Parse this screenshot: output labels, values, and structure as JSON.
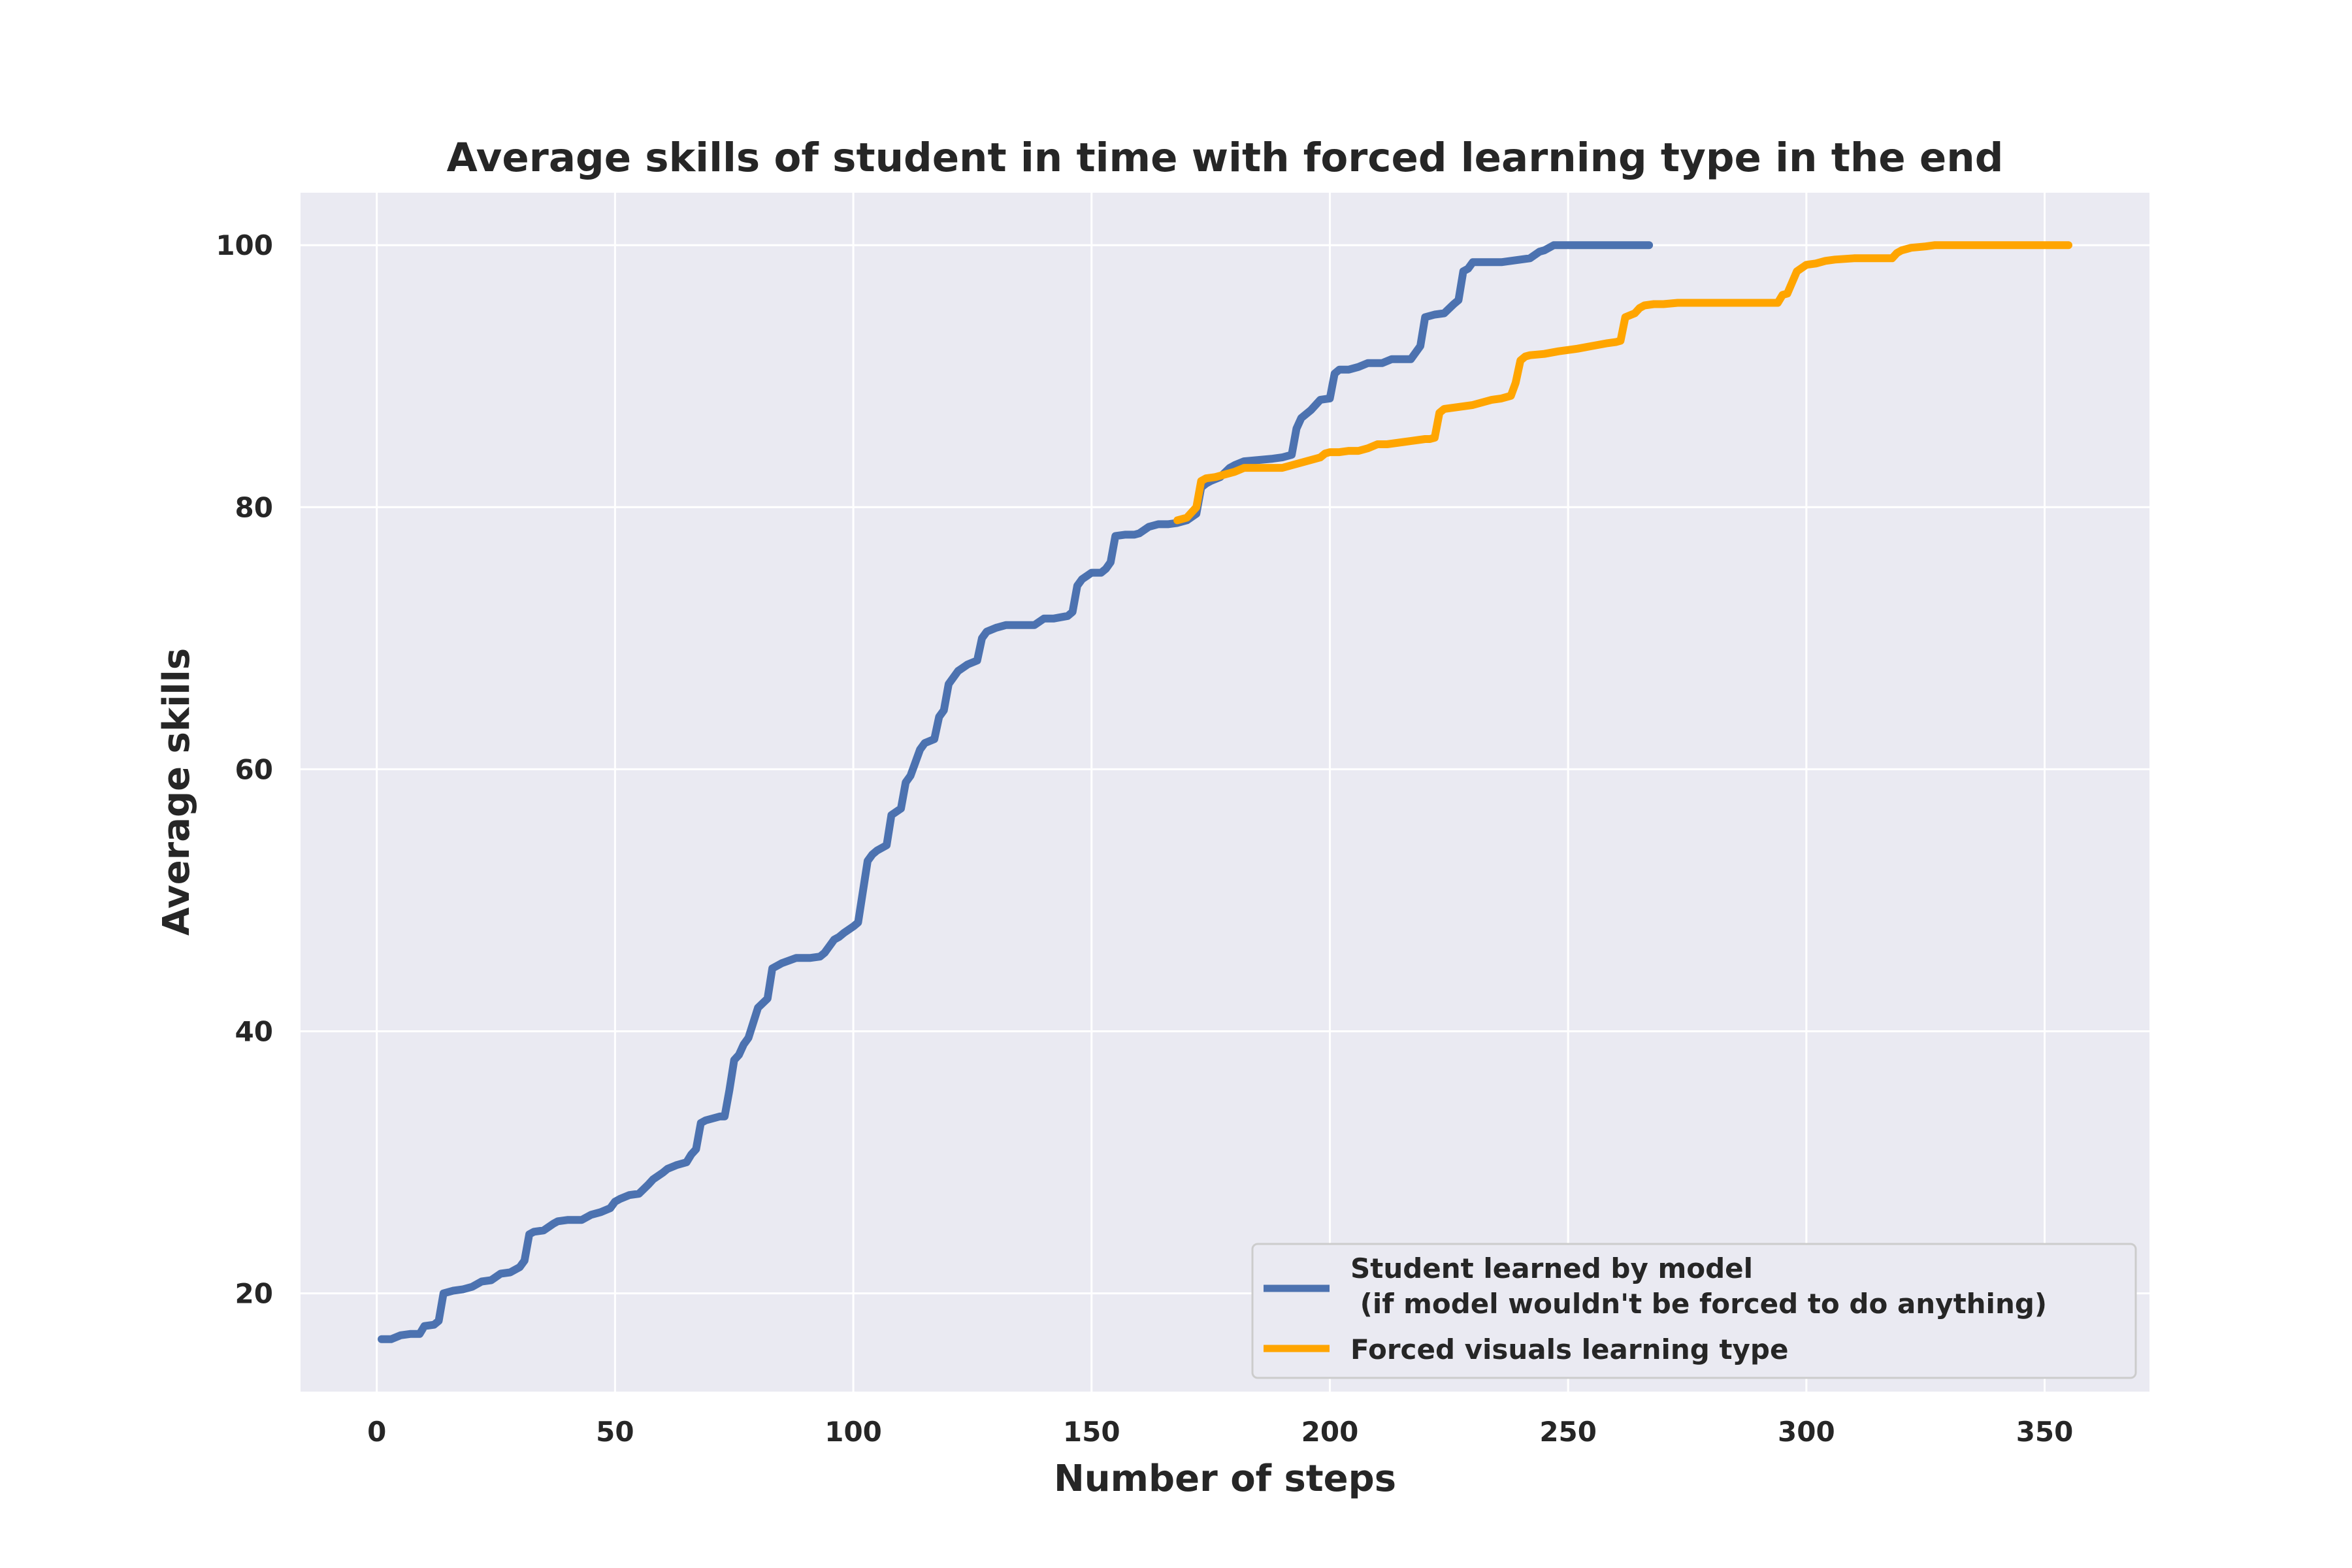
{
  "chart_data": {
    "type": "line",
    "title": "Average skills of student in time with forced learning type in the end",
    "xlabel": "Number of steps",
    "ylabel": "Average skills",
    "xlim": [
      -16,
      372
    ],
    "ylim": [
      12.5,
      104
    ],
    "xticks": [
      0,
      50,
      100,
      150,
      200,
      250,
      300,
      350
    ],
    "yticks": [
      20,
      40,
      60,
      80,
      100
    ],
    "grid": true,
    "legend_position": "lower-right",
    "colors": {
      "background": "#eaeaf2",
      "grid": "#ffffff"
    },
    "series": [
      {
        "name": "Student learned by model\n (if model wouldn't be forced to do anything)",
        "color": "#4c72b0",
        "x": [
          1,
          3,
          5,
          7,
          9,
          10,
          12,
          13,
          14,
          16,
          18,
          20,
          22,
          24,
          26,
          28,
          30,
          31,
          32,
          33,
          35,
          37,
          38,
          40,
          43,
          45,
          47,
          49,
          50,
          51,
          53,
          55,
          57,
          58,
          60,
          61,
          63,
          65,
          66,
          67,
          68,
          69,
          71,
          72,
          73,
          74,
          75,
          76,
          77,
          78,
          80,
          82,
          83,
          85,
          88,
          91,
          93,
          94,
          95,
          96,
          97,
          98,
          100,
          101,
          103,
          104,
          105,
          106,
          107,
          108,
          110,
          111,
          112,
          113,
          114,
          115,
          117,
          118,
          119,
          120,
          122,
          124,
          126,
          127,
          128,
          130,
          132,
          135,
          138,
          140,
          142,
          145,
          146,
          147,
          148,
          150,
          152,
          153,
          154,
          155,
          157,
          159,
          160,
          162,
          164,
          166,
          168,
          170,
          172,
          173,
          174,
          175,
          177,
          179,
          180,
          182,
          185,
          188,
          190,
          192,
          193,
          194,
          196,
          197,
          198,
          200,
          201,
          202,
          204,
          206,
          208,
          209,
          211,
          213,
          215,
          217,
          219,
          220,
          222,
          224,
          226,
          227,
          228,
          229,
          230,
          232,
          234,
          236,
          238,
          240,
          242,
          244,
          245,
          247,
          250,
          255,
          260,
          265,
          267
        ],
        "y": [
          16.5,
          16.5,
          16.8,
          16.9,
          16.9,
          17.5,
          17.6,
          17.9,
          20.0,
          20.2,
          20.3,
          20.5,
          20.9,
          21.0,
          21.5,
          21.6,
          22.0,
          22.5,
          24.5,
          24.7,
          24.8,
          25.3,
          25.5,
          25.6,
          25.6,
          26.0,
          26.2,
          26.5,
          27.0,
          27.2,
          27.5,
          27.6,
          28.3,
          28.7,
          29.2,
          29.5,
          29.8,
          30.0,
          30.6,
          31.0,
          33.0,
          33.2,
          33.4,
          33.5,
          33.5,
          35.5,
          37.8,
          38.2,
          39.0,
          39.5,
          41.8,
          42.5,
          44.8,
          45.2,
          45.6,
          45.6,
          45.7,
          46.0,
          46.5,
          47.0,
          47.2,
          47.5,
          48.0,
          48.3,
          53.0,
          53.5,
          53.8,
          54.0,
          54.2,
          56.5,
          57.0,
          59.0,
          59.5,
          60.5,
          61.5,
          62.0,
          62.3,
          64.0,
          64.5,
          66.5,
          67.5,
          68.0,
          68.3,
          70.0,
          70.5,
          70.8,
          71.0,
          71.0,
          71.0,
          71.5,
          71.5,
          71.7,
          72.0,
          74.0,
          74.5,
          75.0,
          75.0,
          75.3,
          75.8,
          77.8,
          77.9,
          77.9,
          78.0,
          78.5,
          78.7,
          78.7,
          78.8,
          79.0,
          79.5,
          81.5,
          81.8,
          82.0,
          82.3,
          83.0,
          83.2,
          83.5,
          83.6,
          83.7,
          83.8,
          84.0,
          86.0,
          86.8,
          87.4,
          87.8,
          88.2,
          88.3,
          90.2,
          90.5,
          90.5,
          90.7,
          91.0,
          91.0,
          91.0,
          91.3,
          91.3,
          91.3,
          92.3,
          94.5,
          94.7,
          94.8,
          95.5,
          95.8,
          98.0,
          98.2,
          98.7,
          98.7,
          98.7,
          98.7,
          98.8,
          98.9,
          99.0,
          99.5,
          99.6,
          100.0,
          100.0,
          100.0,
          100.0,
          100.0,
          100.0
        ]
      },
      {
        "name": "Forced visuals learning type",
        "color": "#ffa500",
        "x": [
          168,
          170,
          172,
          173,
          174,
          176,
          178,
          180,
          182,
          185,
          188,
          190,
          192,
          194,
          196,
          198,
          199,
          200,
          202,
          204,
          206,
          208,
          210,
          212,
          214,
          216,
          218,
          220,
          221,
          222,
          223,
          224,
          226,
          228,
          230,
          232,
          234,
          236,
          238,
          239,
          240,
          241,
          242,
          245,
          248,
          250,
          252,
          255,
          258,
          260,
          261,
          262,
          264,
          265,
          266,
          268,
          270,
          273,
          276,
          280,
          285,
          290,
          292,
          294,
          295,
          296,
          298,
          300,
          302,
          303,
          304,
          306,
          310,
          314,
          318,
          319,
          320,
          322,
          325,
          327,
          330,
          335,
          340,
          345,
          350,
          355
        ],
        "y": [
          79.0,
          79.2,
          80.0,
          82.0,
          82.2,
          82.3,
          82.5,
          82.7,
          83.0,
          83.0,
          83.0,
          83.0,
          83.2,
          83.4,
          83.6,
          83.8,
          84.1,
          84.2,
          84.2,
          84.3,
          84.3,
          84.5,
          84.8,
          84.8,
          84.9,
          85.0,
          85.1,
          85.2,
          85.2,
          85.3,
          87.2,
          87.5,
          87.6,
          87.7,
          87.8,
          88.0,
          88.2,
          88.3,
          88.5,
          89.5,
          91.2,
          91.5,
          91.6,
          91.7,
          91.9,
          92.0,
          92.1,
          92.3,
          92.5,
          92.6,
          92.7,
          94.5,
          94.8,
          95.2,
          95.4,
          95.5,
          95.5,
          95.6,
          95.6,
          95.6,
          95.6,
          95.6,
          95.6,
          95.6,
          96.2,
          96.3,
          98.0,
          98.5,
          98.6,
          98.7,
          98.8,
          98.9,
          99.0,
          99.0,
          99.0,
          99.4,
          99.6,
          99.8,
          99.9,
          100.0,
          100.0,
          100.0,
          100.0,
          100.0,
          100.0,
          100.0
        ]
      }
    ]
  }
}
